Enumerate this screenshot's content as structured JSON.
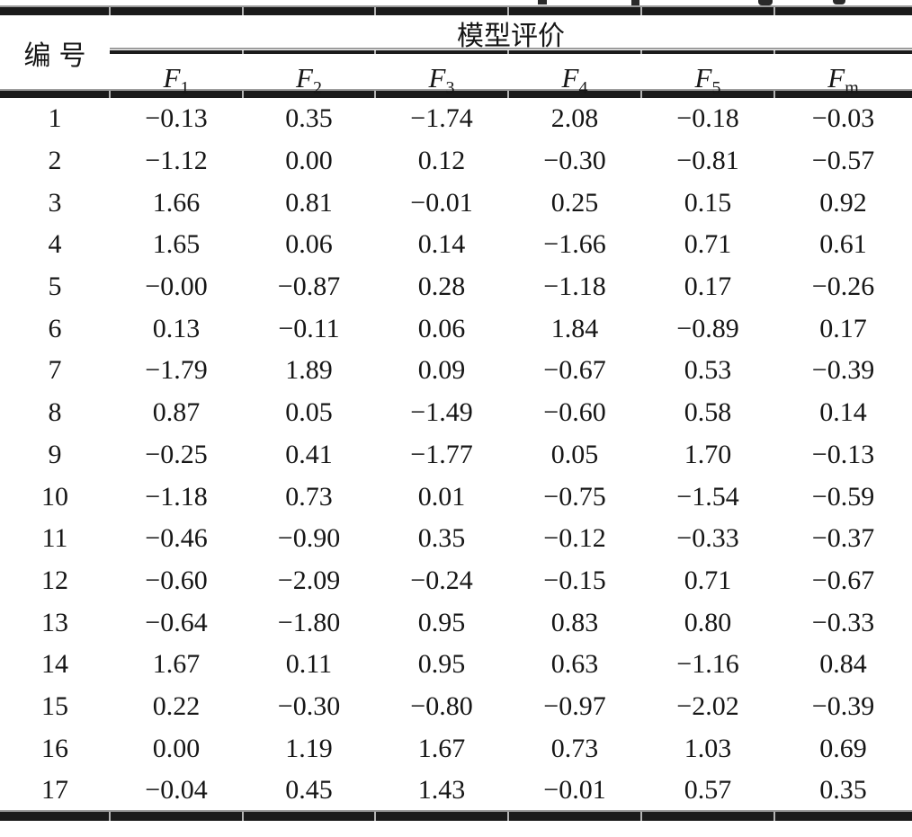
{
  "page": {
    "background": "#ffffff",
    "text_color": "#161616",
    "rule_color": "#1b1b1b"
  },
  "table": {
    "id_header": "编号",
    "group_header": "模型评价",
    "columns": [
      {
        "base": "F",
        "sub": "1"
      },
      {
        "base": "F",
        "sub": "2"
      },
      {
        "base": "F",
        "sub": "3"
      },
      {
        "base": "F",
        "sub": "4"
      },
      {
        "base": "F",
        "sub": "5"
      },
      {
        "base": "F",
        "sub": "m"
      }
    ],
    "rows": [
      {
        "id": "1",
        "values": [
          "−0.13",
          "0.35",
          "−1.74",
          "2.08",
          "−0.18",
          "−0.03"
        ]
      },
      {
        "id": "2",
        "values": [
          "−1.12",
          "0.00",
          "0.12",
          "−0.30",
          "−0.81",
          "−0.57"
        ]
      },
      {
        "id": "3",
        "values": [
          "1.66",
          "0.81",
          "−0.01",
          "0.25",
          "0.15",
          "0.92"
        ]
      },
      {
        "id": "4",
        "values": [
          "1.65",
          "0.06",
          "0.14",
          "−1.66",
          "0.71",
          "0.61"
        ]
      },
      {
        "id": "5",
        "values": [
          "−0.00",
          "−0.87",
          "0.28",
          "−1.18",
          "0.17",
          "−0.26"
        ]
      },
      {
        "id": "6",
        "values": [
          "0.13",
          "−0.11",
          "0.06",
          "1.84",
          "−0.89",
          "0.17"
        ]
      },
      {
        "id": "7",
        "values": [
          "−1.79",
          "1.89",
          "0.09",
          "−0.67",
          "0.53",
          "−0.39"
        ]
      },
      {
        "id": "8",
        "values": [
          "0.87",
          "0.05",
          "−1.49",
          "−0.60",
          "0.58",
          "0.14"
        ]
      },
      {
        "id": "9",
        "values": [
          "−0.25",
          "0.41",
          "−1.77",
          "0.05",
          "1.70",
          "−0.13"
        ]
      },
      {
        "id": "10",
        "values": [
          "−1.18",
          "0.73",
          "0.01",
          "−0.75",
          "−1.54",
          "−0.59"
        ]
      },
      {
        "id": "11",
        "values": [
          "−0.46",
          "−0.90",
          "0.35",
          "−0.12",
          "−0.33",
          "−0.37"
        ]
      },
      {
        "id": "12",
        "values": [
          "−0.60",
          "−2.09",
          "−0.24",
          "−0.15",
          "0.71",
          "−0.67"
        ]
      },
      {
        "id": "13",
        "values": [
          "−0.64",
          "−1.80",
          "0.95",
          "0.83",
          "0.80",
          "−0.33"
        ]
      },
      {
        "id": "14",
        "values": [
          "1.67",
          "0.11",
          "0.95",
          "0.63",
          "−1.16",
          "0.84"
        ]
      },
      {
        "id": "15",
        "values": [
          "0.22",
          "−0.30",
          "−0.80",
          "−0.97",
          "−2.02",
          "−0.39"
        ]
      },
      {
        "id": "16",
        "values": [
          "0.00",
          "1.19",
          "1.67",
          "0.73",
          "1.03",
          "0.69"
        ]
      },
      {
        "id": "17",
        "values": [
          "−0.04",
          "0.45",
          "1.43",
          "−0.01",
          "0.57",
          "0.35"
        ]
      }
    ]
  }
}
